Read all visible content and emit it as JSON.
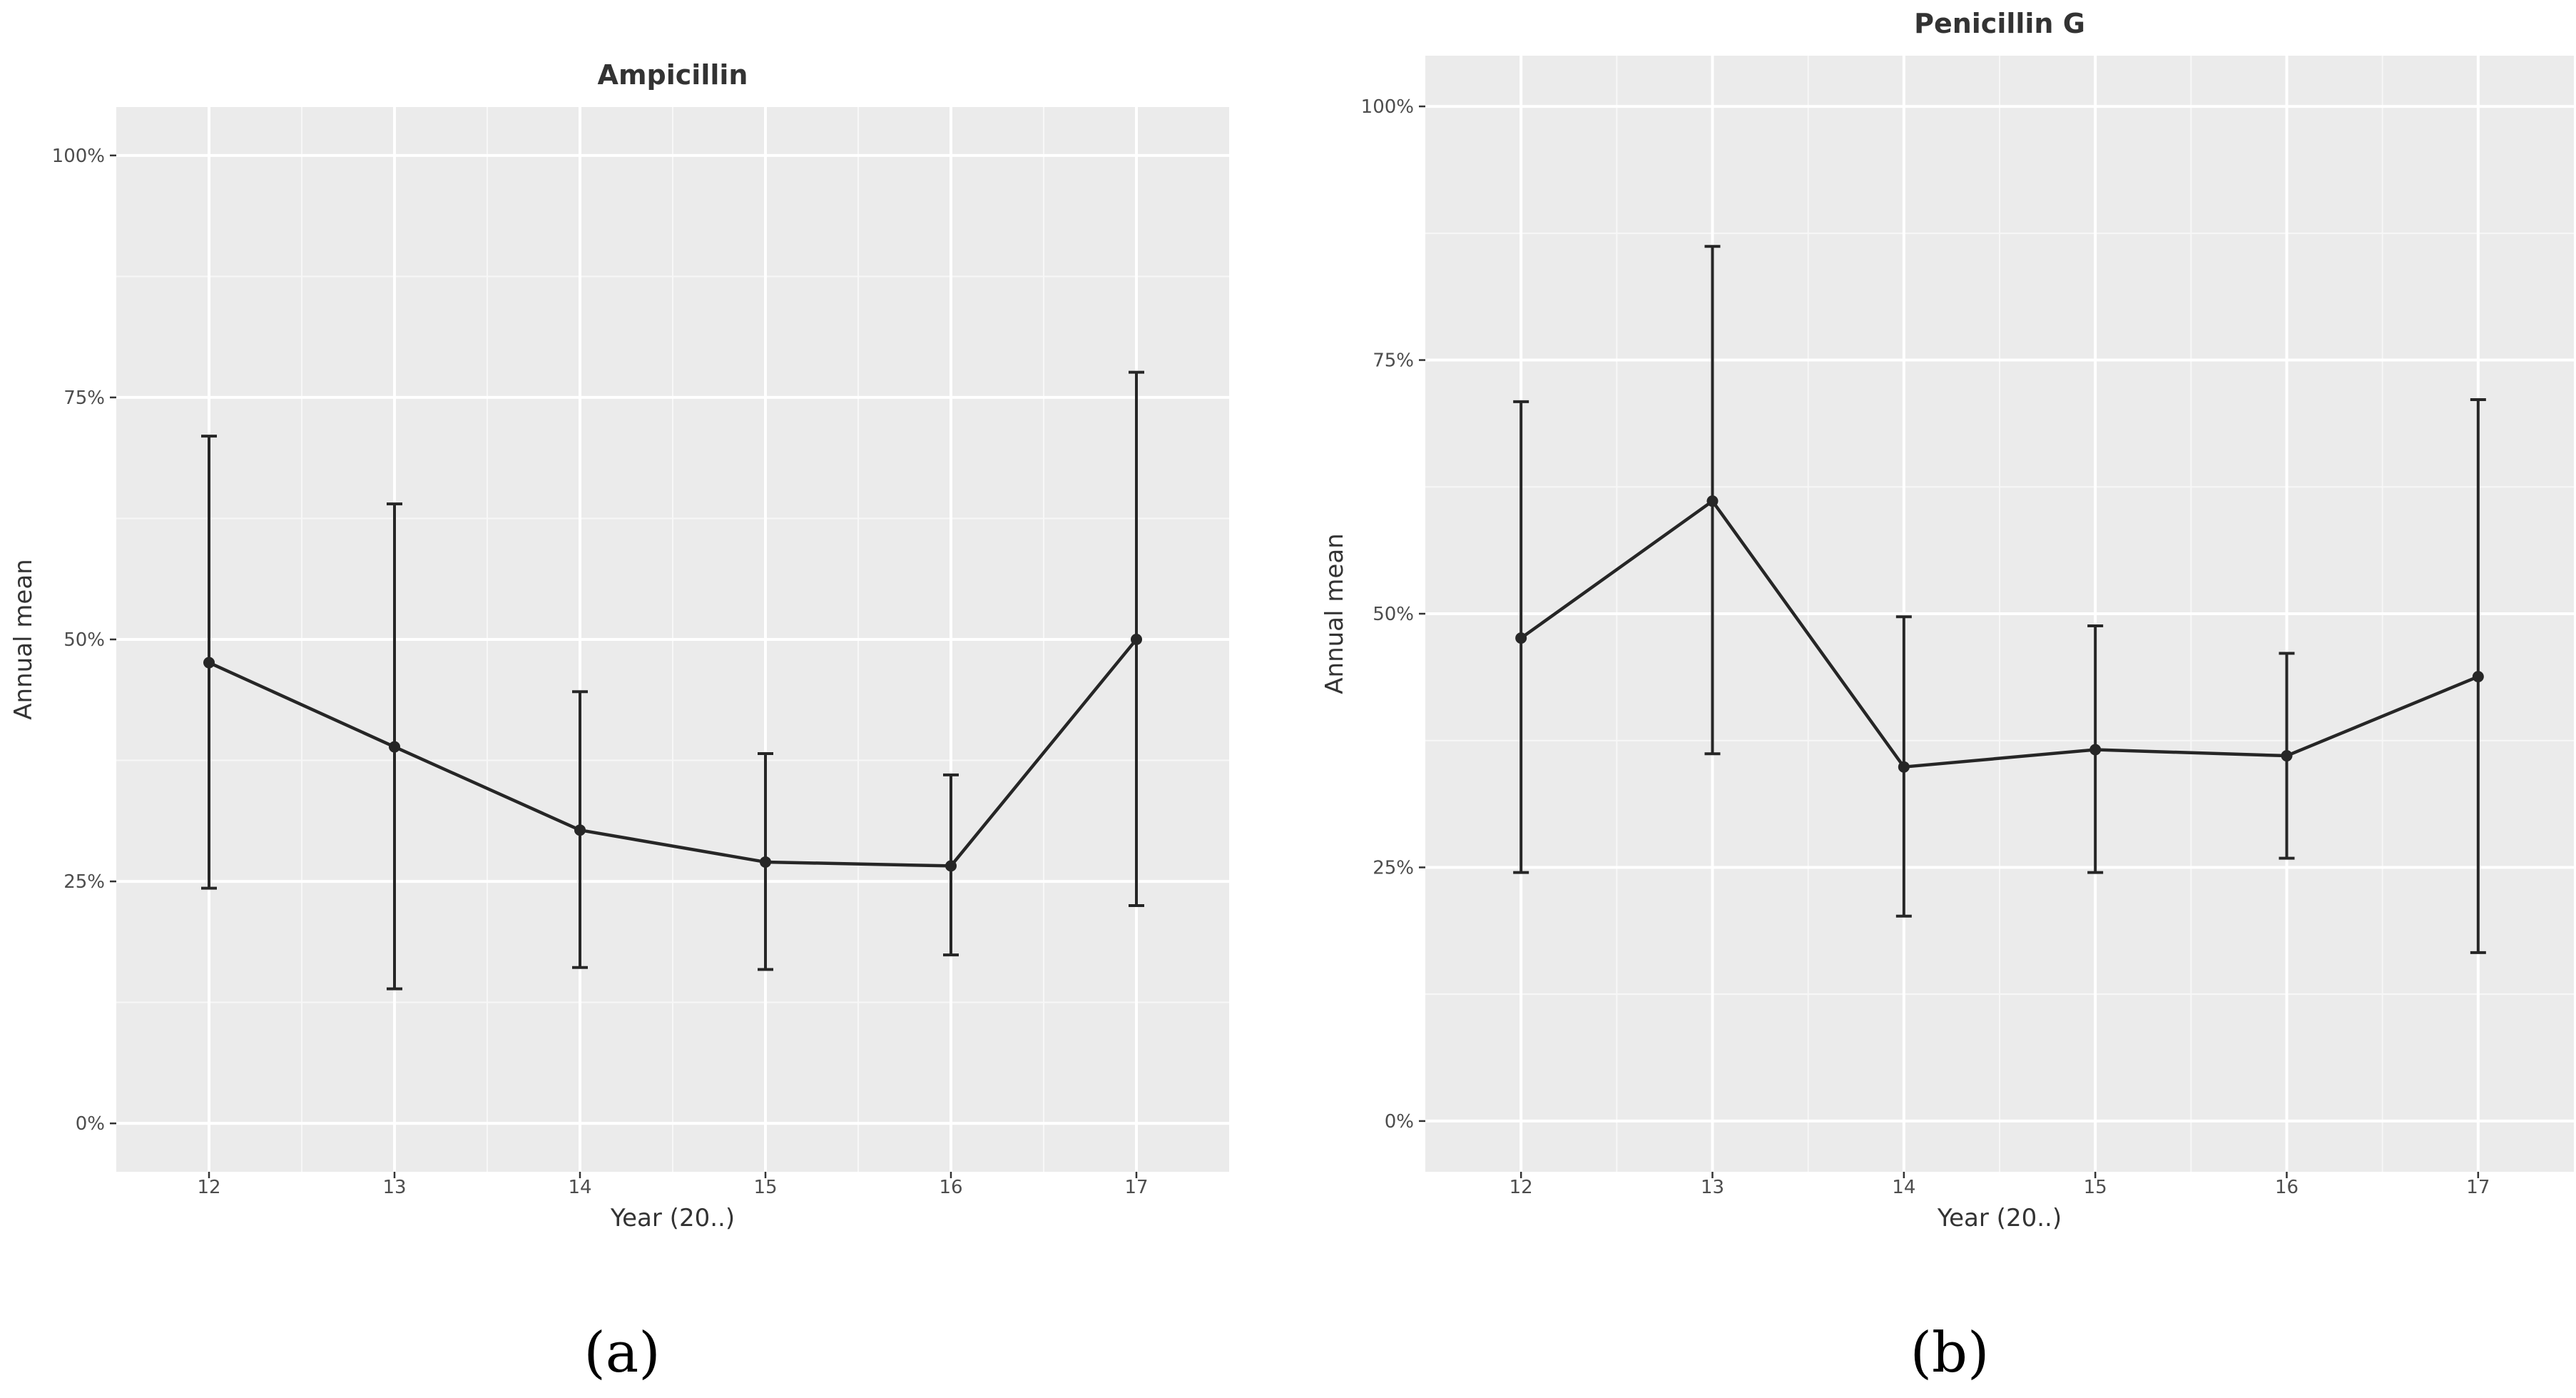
{
  "chart_data": [
    {
      "type": "line",
      "title": "Ampicillin",
      "xlabel": "Year (20..)",
      "ylabel": "Annual mean",
      "caption": "(a)",
      "x_tick_labels": [
        "12",
        "13",
        "14",
        "15",
        "16",
        "17"
      ],
      "y_ticks": [
        0,
        25,
        50,
        75,
        100
      ],
      "y_tick_labels": [
        "0%",
        "25%",
        "50%",
        "75%",
        "100%"
      ],
      "ylim": [
        -5,
        105
      ],
      "grid": true,
      "series": [
        {
          "name": "Ampicillin",
          "values": [
            47.6,
            38.9,
            30.3,
            27.0,
            26.6,
            50.0
          ],
          "lower": [
            24.3,
            13.9,
            16.1,
            15.9,
            17.4,
            22.5
          ],
          "upper": [
            71.0,
            64.0,
            44.6,
            38.2,
            36.0,
            77.6
          ]
        }
      ]
    },
    {
      "type": "line",
      "title": "Penicillin G",
      "xlabel": "Year (20..)",
      "ylabel": "Annual mean",
      "caption": "(b)",
      "x_tick_labels": [
        "12",
        "13",
        "14",
        "15",
        "16",
        "17"
      ],
      "y_ticks": [
        0,
        25,
        50,
        75,
        100
      ],
      "y_tick_labels": [
        "0%",
        "25%",
        "50%",
        "75%",
        "100%"
      ],
      "ylim": [
        -5,
        105
      ],
      "grid": true,
      "series": [
        {
          "name": "Penicillin G",
          "values": [
            47.6,
            61.1,
            34.9,
            36.6,
            36.0,
            43.8
          ],
          "lower": [
            24.5,
            36.2,
            20.2,
            24.5,
            25.9,
            16.6
          ],
          "upper": [
            70.9,
            86.2,
            49.7,
            48.8,
            46.1,
            71.1
          ]
        }
      ]
    }
  ]
}
